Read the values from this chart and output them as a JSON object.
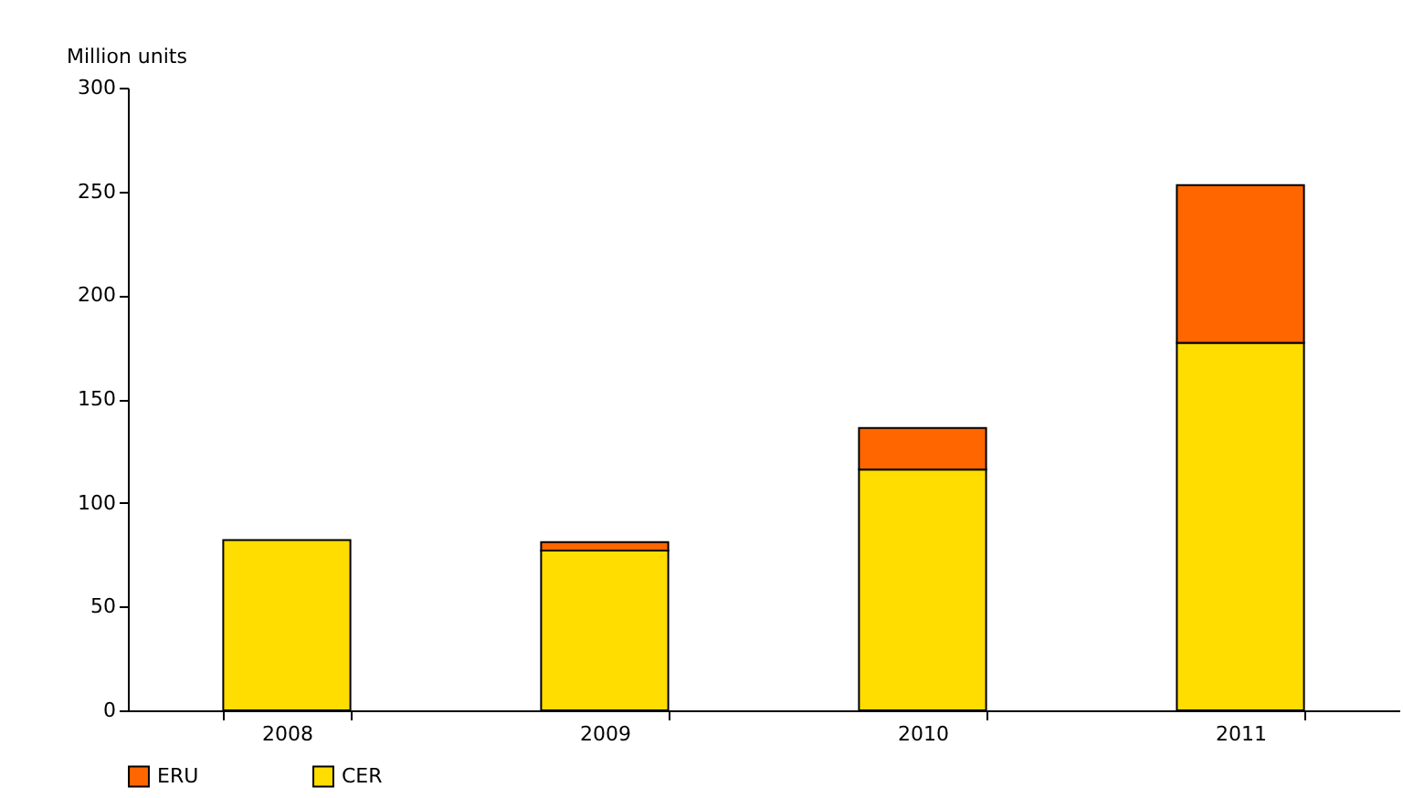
{
  "chart_data": {
    "type": "bar",
    "ylabel": "Million units",
    "categories": [
      "2008",
      "2009",
      "2010",
      "2011"
    ],
    "stacked": true,
    "legend": "bottom left",
    "grid": false,
    "ylim": [
      0,
      300
    ],
    "yticks": [
      0,
      50,
      100,
      150,
      200,
      250,
      300
    ],
    "series": [
      {
        "name": "CER",
        "color": "#ffdd00",
        "values": [
          82,
          77,
          116,
          177
        ]
      },
      {
        "name": "ERU",
        "color": "#ff6600",
        "values": [
          null,
          4,
          20,
          76
        ]
      }
    ]
  }
}
